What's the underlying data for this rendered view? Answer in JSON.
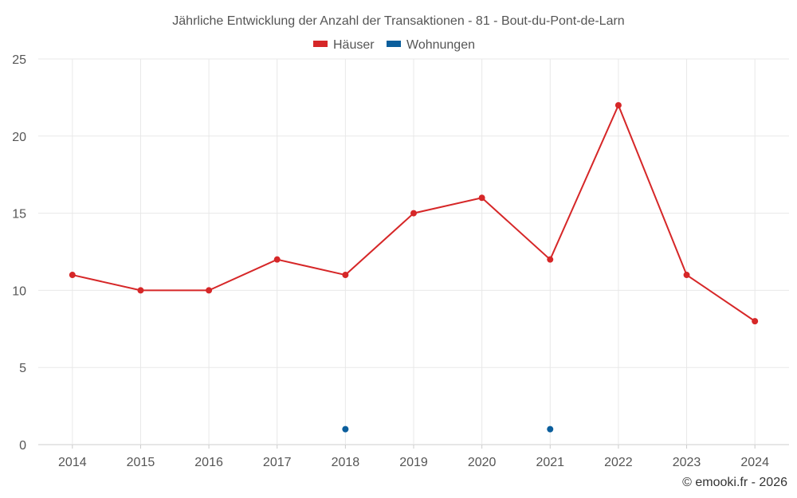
{
  "chart_data": {
    "type": "line",
    "title": "Jährliche Entwicklung der Anzahl der Transaktionen - 81 - Bout-du-Pont-de-Larn",
    "categories": [
      "2014",
      "2015",
      "2016",
      "2017",
      "2018",
      "2019",
      "2020",
      "2021",
      "2022",
      "2023",
      "2024"
    ],
    "series": [
      {
        "name": "Häuser",
        "color": "#d62728",
        "values": [
          11,
          10,
          10,
          12,
          11,
          15,
          16,
          12,
          22,
          11,
          8
        ]
      },
      {
        "name": "Wohnungen",
        "color": "#0b5e9c",
        "values": [
          null,
          null,
          null,
          null,
          1,
          null,
          null,
          1,
          null,
          null,
          null
        ]
      }
    ],
    "yticks": [
      0,
      5,
      10,
      15,
      20,
      25
    ],
    "ylim": [
      0,
      25
    ],
    "xlabel": "",
    "ylabel": "",
    "grid": true,
    "legend_position": "top-center"
  },
  "credit": "© emooki.fr - 2026"
}
